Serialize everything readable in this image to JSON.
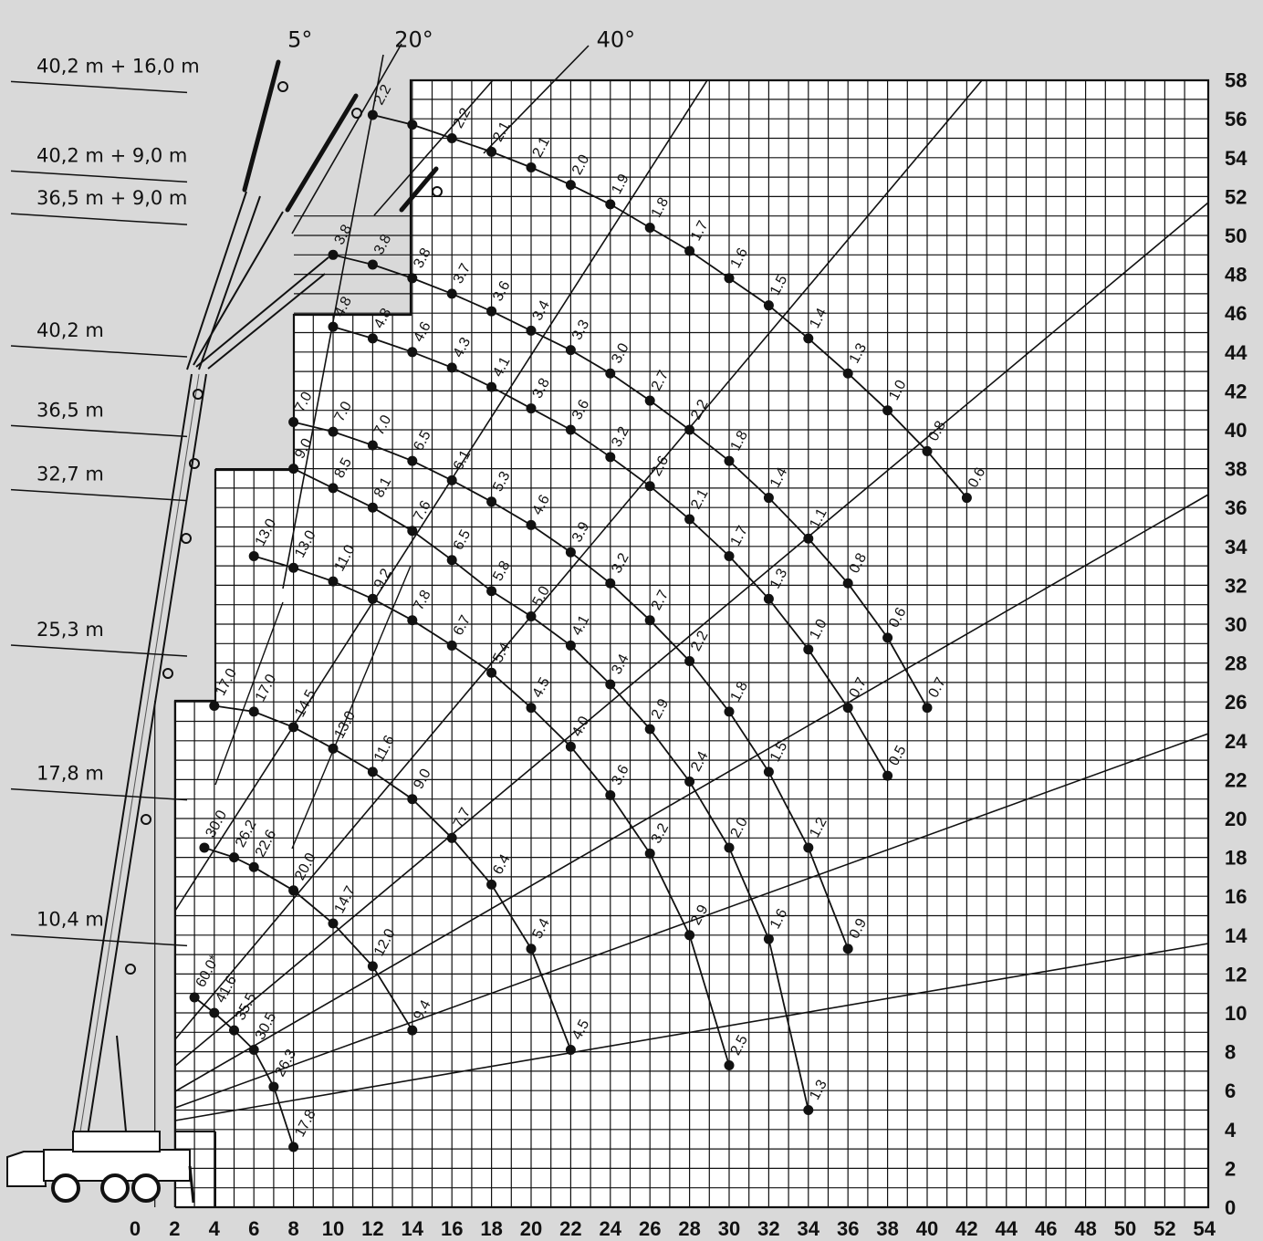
{
  "chart_data": {
    "type": "line",
    "title": "",
    "xlabel": "",
    "ylabel": "",
    "xlim": [
      0,
      54
    ],
    "ylim": [
      0,
      58
    ],
    "x_ticks": [
      "0",
      "2",
      "4",
      "6",
      "8",
      "10",
      "12",
      "14",
      "16",
      "18",
      "20",
      "22",
      "24",
      "26",
      "28",
      "30",
      "32",
      "34",
      "36",
      "38",
      "40",
      "42",
      "44",
      "46",
      "48",
      "50",
      "52",
      "54"
    ],
    "y_ticks": [
      "0",
      "2",
      "4",
      "6",
      "8",
      "10",
      "12",
      "14",
      "16",
      "18",
      "20",
      "22",
      "24",
      "26",
      "28",
      "30",
      "32",
      "34",
      "36",
      "38",
      "40",
      "42",
      "44",
      "46",
      "48",
      "50",
      "52",
      "54",
      "56",
      "58"
    ],
    "grid": true,
    "angle_labels": [
      {
        "text": "5°",
        "x": 7.7,
        "y": 59.7
      },
      {
        "text": "20°",
        "x": 13.1,
        "y": 59.7
      },
      {
        "text": "40°",
        "x": 23.3,
        "y": 59.7
      }
    ],
    "boom_labels": [
      {
        "text": "40,2 m + 16,0 m",
        "y": 58.2
      },
      {
        "text": "40,2 m + 9,0 m",
        "y": 53.6
      },
      {
        "text": "36,5 m + 9,0 m",
        "y": 51.4
      },
      {
        "text": "40,2 m",
        "y": 44.6
      },
      {
        "text": "36,5 m",
        "y": 40.5
      },
      {
        "text": "32,7 m",
        "y": 37.2
      },
      {
        "text": "25,3 m",
        "y": 29.2
      },
      {
        "text": "17,8 m",
        "y": 21.8
      },
      {
        "text": "10,4 m",
        "y": 14.3
      }
    ],
    "series": [
      {
        "points": [
          {
            "x": 12,
            "y": 56.2,
            "label": "2.2"
          },
          {
            "x": 14,
            "y": 55.7
          },
          {
            "x": 16,
            "y": 55.0,
            "label": "2.2"
          },
          {
            "x": 18,
            "y": 54.3,
            "label": "2.1"
          },
          {
            "x": 20,
            "y": 53.5,
            "label": "2.1"
          },
          {
            "x": 22,
            "y": 52.6,
            "label": "2.0"
          },
          {
            "x": 24,
            "y": 51.6,
            "label": "1.9"
          },
          {
            "x": 26,
            "y": 50.4,
            "label": "1.8"
          },
          {
            "x": 28,
            "y": 49.2,
            "label": "1.7"
          },
          {
            "x": 30,
            "y": 47.8,
            "label": "1.6"
          },
          {
            "x": 32,
            "y": 46.4,
            "label": "1.5"
          },
          {
            "x": 34,
            "y": 44.7,
            "label": "1.4"
          },
          {
            "x": 36,
            "y": 42.9,
            "label": "1.3"
          },
          {
            "x": 38,
            "y": 41.0,
            "label": "1.0"
          },
          {
            "x": 40,
            "y": 38.9,
            "label": "0.8"
          },
          {
            "x": 42,
            "y": 36.5,
            "label": "0.6"
          }
        ]
      },
      {
        "points": [
          {
            "x": 10,
            "y": 49.0,
            "label": "3.8"
          },
          {
            "x": 12,
            "y": 48.5,
            "label": "3.8"
          },
          {
            "x": 14,
            "y": 47.8,
            "label": "3.8"
          },
          {
            "x": 16,
            "y": 47.0,
            "label": "3.7"
          },
          {
            "x": 18,
            "y": 46.1,
            "label": "3.6"
          },
          {
            "x": 20,
            "y": 45.1,
            "label": "3.4"
          },
          {
            "x": 22,
            "y": 44.1,
            "label": "3.3"
          },
          {
            "x": 24,
            "y": 42.9,
            "label": "3.0"
          },
          {
            "x": 26,
            "y": 41.5,
            "label": "2.7"
          },
          {
            "x": 28,
            "y": 40.0,
            "label": "2.2"
          },
          {
            "x": 30,
            "y": 38.4,
            "label": "1.8"
          },
          {
            "x": 32,
            "y": 36.5,
            "label": "1.4"
          },
          {
            "x": 34,
            "y": 34.4,
            "label": "1.1"
          },
          {
            "x": 36,
            "y": 32.1,
            "label": "0.8"
          },
          {
            "x": 38,
            "y": 29.3,
            "label": "0.6"
          },
          {
            "x": 40,
            "y": 25.7,
            "label": "0.7"
          }
        ]
      },
      {
        "points": [
          {
            "x": 10,
            "y": 45.3,
            "label": "4.8"
          },
          {
            "x": 12,
            "y": 44.7,
            "label": "4.8"
          },
          {
            "x": 14,
            "y": 44.0,
            "label": "4.6"
          },
          {
            "x": 16,
            "y": 43.2,
            "label": "4.3"
          },
          {
            "x": 18,
            "y": 42.2,
            "label": "4.1"
          },
          {
            "x": 20,
            "y": 41.1,
            "label": "3.8"
          },
          {
            "x": 22,
            "y": 40.0,
            "label": "3.6"
          },
          {
            "x": 24,
            "y": 38.6,
            "label": "3.2"
          },
          {
            "x": 26,
            "y": 37.1,
            "label": "2.6"
          },
          {
            "x": 28,
            "y": 35.4,
            "label": "2.1"
          },
          {
            "x": 30,
            "y": 33.5,
            "label": "1.7"
          },
          {
            "x": 32,
            "y": 31.3,
            "label": "1.3"
          },
          {
            "x": 34,
            "y": 28.7,
            "label": "1.0"
          },
          {
            "x": 36,
            "y": 25.7,
            "label": "0.7"
          },
          {
            "x": 38,
            "y": 22.2,
            "label": "0.5"
          }
        ]
      },
      {
        "points": [
          {
            "x": 8,
            "y": 40.4,
            "label": "7.0"
          },
          {
            "x": 10,
            "y": 39.9,
            "label": "7.0"
          },
          {
            "x": 12,
            "y": 39.2,
            "label": "7.0"
          },
          {
            "x": 14,
            "y": 38.4,
            "label": "6.5"
          },
          {
            "x": 16,
            "y": 37.4,
            "label": "6.1"
          },
          {
            "x": 18,
            "y": 36.3,
            "label": "5.3"
          },
          {
            "x": 20,
            "y": 35.1,
            "label": "4.6"
          },
          {
            "x": 22,
            "y": 33.7,
            "label": "3.9"
          },
          {
            "x": 24,
            "y": 32.1,
            "label": "3.2"
          },
          {
            "x": 26,
            "y": 30.2,
            "label": "2.7"
          },
          {
            "x": 28,
            "y": 28.1,
            "label": "2.2"
          },
          {
            "x": 30,
            "y": 25.5,
            "label": "1.8"
          },
          {
            "x": 32,
            "y": 22.4,
            "label": "1.5"
          },
          {
            "x": 34,
            "y": 18.5,
            "label": "1.2"
          },
          {
            "x": 36,
            "y": 13.3,
            "label": "0.9"
          }
        ]
      },
      {
        "points": [
          {
            "x": 8,
            "y": 38.0,
            "label": "9.0"
          },
          {
            "x": 10,
            "y": 37.0,
            "label": "8.5"
          },
          {
            "x": 12,
            "y": 36.0,
            "label": "8.1"
          },
          {
            "x": 14,
            "y": 34.8,
            "label": "7.6"
          },
          {
            "x": 16,
            "y": 33.3,
            "label": "6.5"
          },
          {
            "x": 18,
            "y": 31.7,
            "label": "5.8"
          },
          {
            "x": 20,
            "y": 30.4,
            "label": "5.0"
          },
          {
            "x": 22,
            "y": 28.9,
            "label": "4.1"
          },
          {
            "x": 24,
            "y": 26.9,
            "label": "3.4"
          },
          {
            "x": 26,
            "y": 24.6,
            "label": "2.9"
          },
          {
            "x": 28,
            "y": 21.9,
            "label": "2.4"
          },
          {
            "x": 30,
            "y": 18.5,
            "label": "2.0"
          },
          {
            "x": 32,
            "y": 13.8,
            "label": "1.6"
          },
          {
            "x": 34,
            "y": 5.0,
            "label": "1.3"
          }
        ]
      },
      {
        "points": [
          {
            "x": 6,
            "y": 33.5,
            "label": "13.0"
          },
          {
            "x": 8,
            "y": 32.9,
            "label": "13.0"
          },
          {
            "x": 10,
            "y": 32.2,
            "label": "11.0"
          },
          {
            "x": 12,
            "y": 31.3,
            "label": "9.2"
          },
          {
            "x": 14,
            "y": 30.2,
            "label": "7.8"
          },
          {
            "x": 16,
            "y": 28.9,
            "label": "6.7"
          },
          {
            "x": 18,
            "y": 27.5,
            "label": "5.4"
          },
          {
            "x": 20,
            "y": 25.7,
            "label": "4.5"
          },
          {
            "x": 22,
            "y": 23.7,
            "label": "4.0"
          },
          {
            "x": 24,
            "y": 21.2,
            "label": "3.6"
          },
          {
            "x": 26,
            "y": 18.2,
            "label": "3.2"
          },
          {
            "x": 28,
            "y": 14.0,
            "label": "2.9"
          },
          {
            "x": 30,
            "y": 7.3,
            "label": "2.5"
          }
        ]
      },
      {
        "points": [
          {
            "x": 4,
            "y": 25.8,
            "label": "17.0"
          },
          {
            "x": 6,
            "y": 25.5,
            "label": "17.0"
          },
          {
            "x": 8,
            "y": 24.7,
            "label": "14.5"
          },
          {
            "x": 10,
            "y": 23.6,
            "label": "13.0"
          },
          {
            "x": 12,
            "y": 22.4,
            "label": "11.6"
          },
          {
            "x": 14,
            "y": 21.0,
            "label": "9.0"
          },
          {
            "x": 16,
            "y": 19.0,
            "label": "7.7"
          },
          {
            "x": 18,
            "y": 16.6,
            "label": "6.4"
          },
          {
            "x": 20,
            "y": 13.3,
            "label": "5.4"
          },
          {
            "x": 22,
            "y": 8.1,
            "label": "4.5"
          }
        ]
      },
      {
        "points": [
          {
            "x": 3.5,
            "y": 18.5,
            "label": "30.0"
          },
          {
            "x": 5,
            "y": 18.0,
            "label": "26.2"
          },
          {
            "x": 6,
            "y": 17.5,
            "label": "22.6"
          },
          {
            "x": 8,
            "y": 16.3,
            "label": "20.0"
          },
          {
            "x": 10,
            "y": 14.6,
            "label": "14.7"
          },
          {
            "x": 12,
            "y": 12.4,
            "label": "12.0"
          },
          {
            "x": 14,
            "y": 9.1,
            "label": "9.4"
          }
        ]
      },
      {
        "points": [
          {
            "x": 3,
            "y": 10.8,
            "label": "60.0*"
          },
          {
            "x": 4,
            "y": 10.0,
            "label": "41.6"
          },
          {
            "x": 5,
            "y": 9.1,
            "label": "35.5"
          },
          {
            "x": 6,
            "y": 8.1,
            "label": "30.5"
          },
          {
            "x": 7,
            "y": 6.2,
            "label": "26.3"
          },
          {
            "x": 8,
            "y": 3.1,
            "label": "17.8"
          }
        ]
      }
    ]
  }
}
